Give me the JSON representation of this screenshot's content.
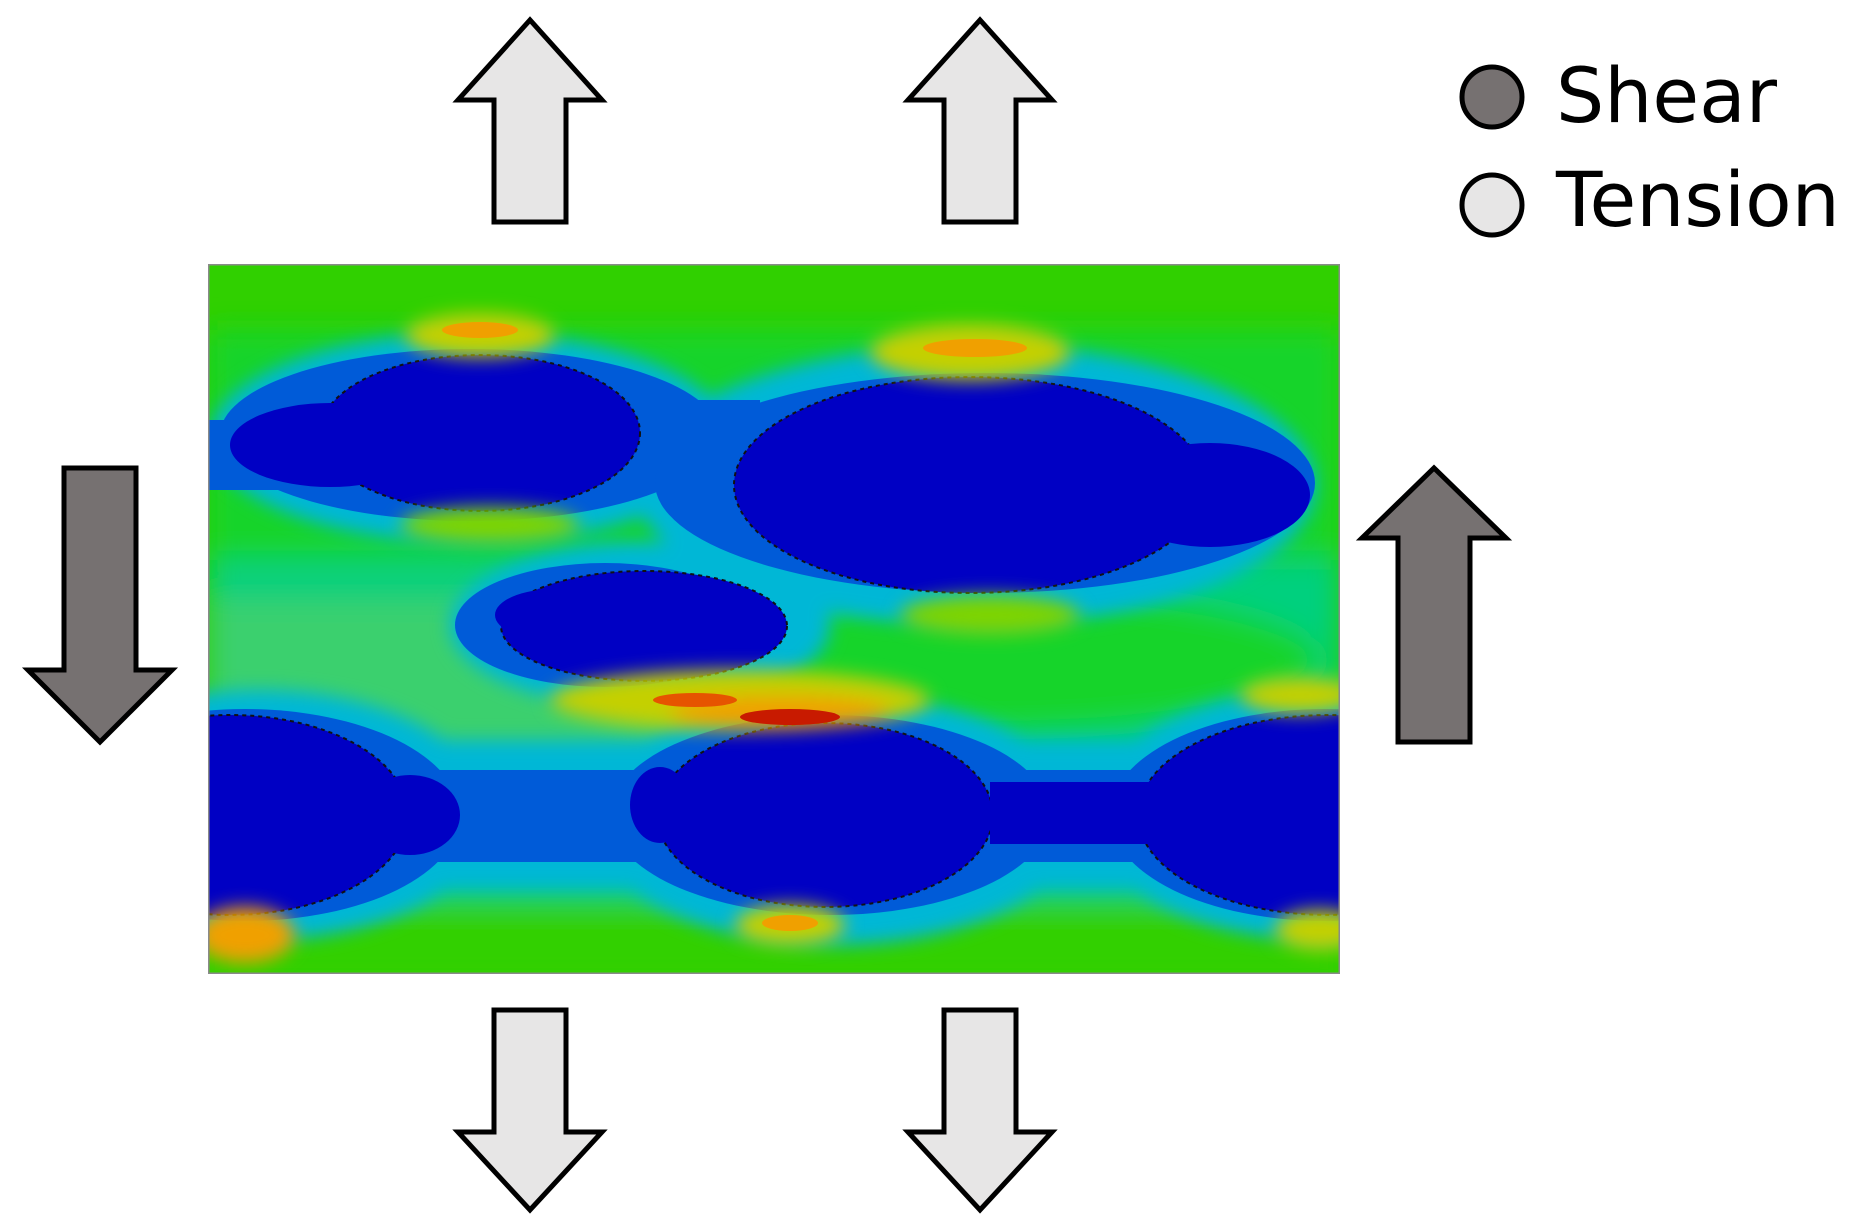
{
  "legend": {
    "items": [
      {
        "label": "Shear",
        "color": "#767171"
      },
      {
        "label": "Tension",
        "color": "#e7e6e6"
      }
    ]
  },
  "colors": {
    "shear_arrow": "#767171",
    "tension_arrow": "#e7e6e6",
    "arrow_outline": "#000000",
    "contour_levels": [
      "#0000c4",
      "#005bd8",
      "#00b7d6",
      "#00d07e",
      "#15d42b",
      "#30d000",
      "#7ed400",
      "#c4d000",
      "#f0a000",
      "#e65400",
      "#c81a00"
    ]
  }
}
